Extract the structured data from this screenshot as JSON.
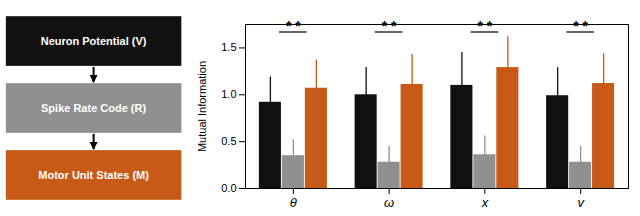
{
  "chart_data": {
    "type": "bar",
    "categories": [
      "θ",
      "ω",
      "x",
      "v"
    ],
    "ylabel": "Mutual Information",
    "series": [
      {
        "name": "Neuron Potential (V)",
        "color": "#111111",
        "values": [
          0.92,
          1.0,
          1.1,
          0.99
        ],
        "errors": [
          0.27,
          0.29,
          0.35,
          0.3
        ]
      },
      {
        "name": "Spike Rate Code (R)",
        "color": "#909090",
        "values": [
          0.35,
          0.28,
          0.36,
          0.28
        ],
        "errors": [
          0.17,
          0.17,
          0.2,
          0.17
        ]
      },
      {
        "name": "Motor Unit States (M)",
        "color": "#c85a17",
        "values": [
          1.07,
          1.11,
          1.29,
          1.12
        ],
        "errors": [
          0.3,
          0.32,
          0.33,
          0.32
        ]
      }
    ],
    "ylim": [
      0,
      1.75
    ],
    "yticks": [
      {
        "value": 0,
        "label": "0.0"
      },
      0.5,
      {
        "value": 1.0,
        "label": "1.0"
      },
      1.5
    ],
    "annotations": [
      {
        "category": "θ",
        "y": 1.67,
        "text": "* *"
      },
      {
        "category": "ω",
        "y": 1.67,
        "text": "* *"
      },
      {
        "category": "x",
        "y": 1.67,
        "text": "* *"
      },
      {
        "category": "v",
        "y": 1.67,
        "text": "* *"
      }
    ]
  }
}
